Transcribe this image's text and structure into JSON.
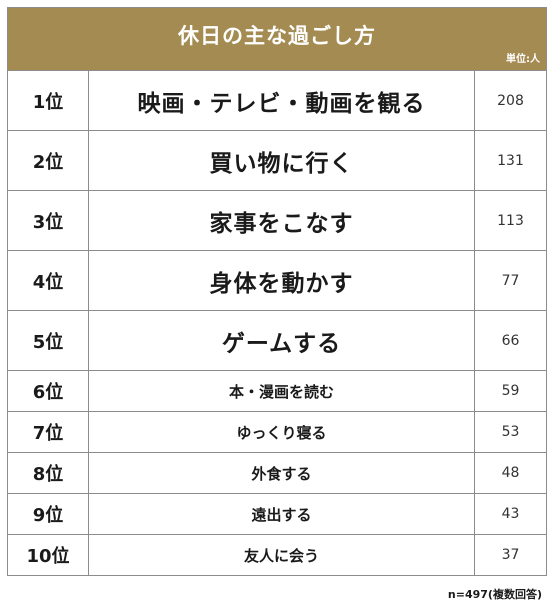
{
  "header": {
    "title": "休日の主な過ごし方",
    "unit": "単位:人",
    "background": "#a48b52"
  },
  "rows": [
    {
      "rank": "1位",
      "item": "映画・テレビ・動画を観る",
      "count": "208"
    },
    {
      "rank": "2位",
      "item": "買い物に行く",
      "count": "131"
    },
    {
      "rank": "3位",
      "item": "家事をこなす",
      "count": "113"
    },
    {
      "rank": "4位",
      "item": "身体を動かす",
      "count": "77"
    },
    {
      "rank": "5位",
      "item": "ゲームする",
      "count": "66"
    },
    {
      "rank": "6位",
      "item": "本・漫画を読む",
      "count": "59"
    },
    {
      "rank": "7位",
      "item": "ゆっくり寝る",
      "count": "53"
    },
    {
      "rank": "8位",
      "item": "外食する",
      "count": "48"
    },
    {
      "rank": "9位",
      "item": "遠出する",
      "count": "43"
    },
    {
      "rank": "10位",
      "item": "友人に会う",
      "count": "37"
    }
  ],
  "footnote": "n=497(複数回答)"
}
